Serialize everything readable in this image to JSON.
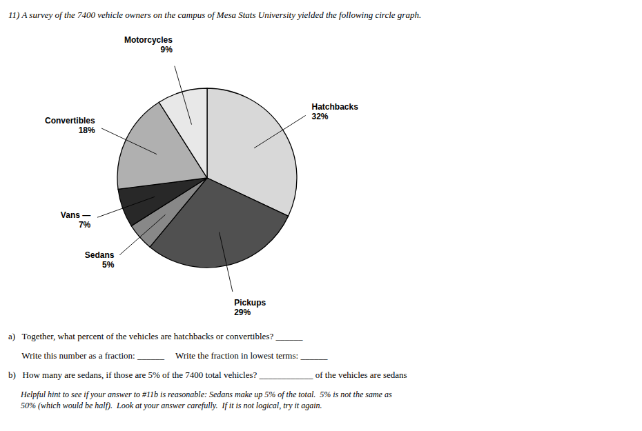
{
  "chart_data": {
    "type": "pie",
    "title": "11) A survey of the 7400 vehicle owners on the campus of Mesa Stats University yielded the following circle graph.",
    "categories": [
      "Hatchbacks",
      "Pickups",
      "Sedans",
      "Vans —",
      "Convertibles",
      "Motorcycles"
    ],
    "values": [
      32,
      29,
      5,
      7,
      18,
      9
    ],
    "value_labels": [
      "32%",
      "29%",
      "5%",
      "7%",
      "18%",
      "9%"
    ],
    "colors": [
      "#d8d8d8",
      "#505050",
      "#888888",
      "#282828",
      "#b0b0b0",
      "#e8e8e8"
    ],
    "data_labels": true,
    "annotations": [
      "a)   Together, what percent of the vehicles are hatchbacks or convertibles? ______",
      "      Write this number as a fraction: ______     Write the fraction in lowest terms: ______",
      "b)   How many are sedans, if those are 5% of the 7400 total vehicles? ____________ of the vehicles are sedans",
      "      Helpful hint to see if your answer to #11b is reasonable: Sedans make up 5% of the total.  5% is not the same as\n      50% (which would be half).  Look at your answer carefully.  If it is not logical, try it again."
    ]
  }
}
